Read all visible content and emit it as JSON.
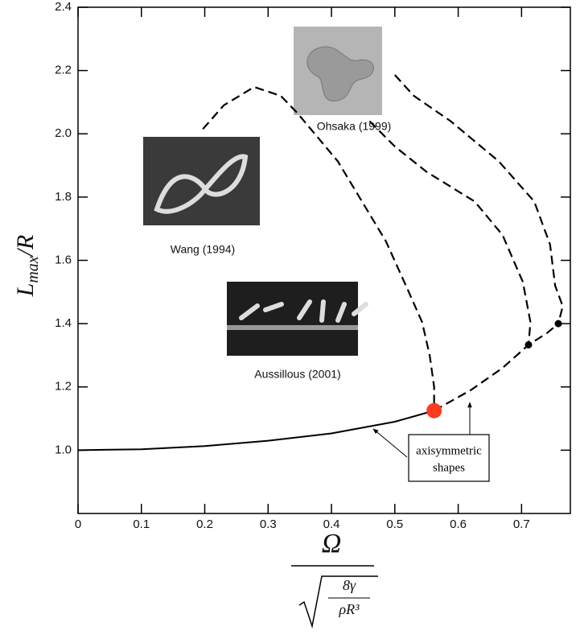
{
  "chart_data": {
    "type": "line",
    "ylabel": "L",
    "ylabel_subscript": "max",
    "ylabel_rest": "/R",
    "xlabel": {
      "numerator": "Ω",
      "denominator_top": "8γ",
      "denominator_bottom": "ρR³"
    },
    "xlim": [
      0,
      0.777
    ],
    "ylim": [
      0.8,
      2.4
    ],
    "xticks": [
      0,
      0.1,
      0.2,
      0.3,
      0.4,
      0.5,
      0.6,
      0.7
    ],
    "yticks": [
      {
        "value": 1,
        "label": "1.0"
      },
      1.2,
      1.4,
      1.6,
      1.8,
      {
        "value": 2,
        "label": "2.0"
      },
      2.2,
      2.4
    ],
    "series": [
      {
        "color": "#000000",
        "style": "solid",
        "x": [
          0,
          0.1,
          0.2,
          0.3,
          0.4,
          0.5,
          0.562
        ],
        "values": [
          1.0,
          1.003,
          1.013,
          1.03,
          1.053,
          1.09,
          1.125
        ]
      },
      {
        "color": "#000000",
        "style": "dashed",
        "x": [
          0.562,
          0.62,
          0.67,
          0.711,
          0.74,
          0.758
        ],
        "values": [
          1.125,
          1.19,
          1.26,
          1.333,
          1.37,
          1.4
        ]
      },
      {
        "color": "#000000",
        "style": "dashed",
        "x": [
          0.197,
          0.23,
          0.278,
          0.32,
          0.346,
          0.41,
          0.486,
          0.522,
          0.543,
          0.555,
          0.562,
          0.562
        ],
        "values": [
          2.015,
          2.09,
          2.148,
          2.12,
          2.066,
          1.913,
          1.66,
          1.5,
          1.405,
          1.3,
          1.2,
          1.125
        ]
      },
      {
        "color": "#000000",
        "style": "dashed",
        "x": [
          0.46,
          0.5,
          0.55,
          0.626,
          0.67,
          0.702,
          0.714,
          0.711
        ],
        "values": [
          2.04,
          1.96,
          1.88,
          1.786,
          1.68,
          1.532,
          1.405,
          1.333
        ]
      },
      {
        "color": "#000000",
        "style": "dashed",
        "x": [
          0.5,
          0.53,
          0.588,
          0.664,
          0.72,
          0.745,
          0.753,
          0.765,
          0.758
        ],
        "values": [
          2.186,
          2.12,
          2.04,
          1.913,
          1.786,
          1.65,
          1.52,
          1.455,
          1.4
        ]
      }
    ],
    "points": [
      {
        "x": 0.562,
        "value": 1.125,
        "color": "#ff3b1f"
      },
      {
        "x": 0.711,
        "value": 1.333,
        "color": "#000000"
      },
      {
        "x": 0.758,
        "value": 1.4,
        "color": "#000000"
      }
    ],
    "insets": [
      {
        "caption": "Ohsaka (1999)"
      },
      {
        "caption": "Wang (1994)"
      },
      {
        "caption": "Aussillous (2001)"
      }
    ],
    "annotation": [
      "axisymmetric",
      "shapes"
    ]
  }
}
